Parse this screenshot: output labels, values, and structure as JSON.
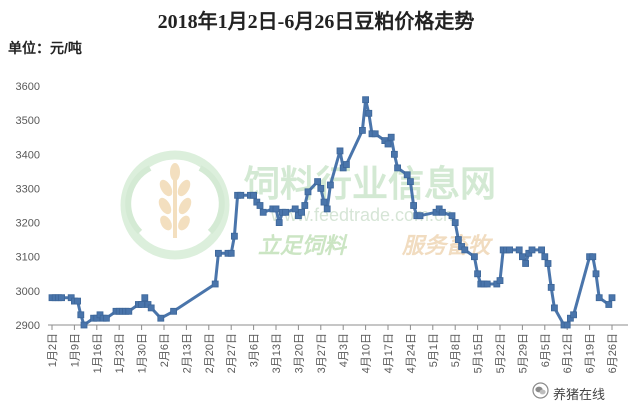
{
  "chart_data": {
    "type": "line",
    "title": "2018年1月2日-6月26日豆粕价格走势",
    "unit_label": "单位：元/吨",
    "ylim": [
      2900,
      3600
    ],
    "y_ticks": [
      3600,
      3500,
      3400,
      3300,
      3200,
      3100,
      3000,
      2900
    ],
    "xlim": [
      "2018-01-02",
      "2018-06-26"
    ],
    "x_tick_labels": [
      "1月2日",
      "1月9日",
      "1月16日",
      "1月23日",
      "1月30日",
      "2月6日",
      "2月13日",
      "2月20日",
      "2月27日",
      "3月6日",
      "3月13日",
      "3月20日",
      "3月27日",
      "4月3日",
      "4月10日",
      "4月17日",
      "4月24日",
      "5月1日",
      "5月8日",
      "5月15日",
      "5月22日",
      "5月29日",
      "6月5日",
      "6月12日",
      "6月19日",
      "6月26日"
    ],
    "grid": false,
    "series": [
      {
        "color": "#4A75AB",
        "marker_edge_color": "#3D6699",
        "marker": "square",
        "x": [
          "2018-01-02",
          "2018-01-03",
          "2018-01-04",
          "2018-01-05",
          "2018-01-08",
          "2018-01-09",
          "2018-01-10",
          "2018-01-11",
          "2018-01-12",
          "2018-01-15",
          "2018-01-16",
          "2018-01-17",
          "2018-01-18",
          "2018-01-19",
          "2018-01-22",
          "2018-01-23",
          "2018-01-24",
          "2018-01-25",
          "2018-01-26",
          "2018-01-29",
          "2018-01-30",
          "2018-01-31",
          "2018-02-01",
          "2018-02-02",
          "2018-02-05",
          "2018-02-09",
          "2018-02-22",
          "2018-02-23",
          "2018-02-26",
          "2018-02-27",
          "2018-02-28",
          "2018-03-01",
          "2018-03-02",
          "2018-03-05",
          "2018-03-06",
          "2018-03-07",
          "2018-03-08",
          "2018-03-09",
          "2018-03-12",
          "2018-03-13",
          "2018-03-14",
          "2018-03-15",
          "2018-03-16",
          "2018-03-19",
          "2018-03-20",
          "2018-03-21",
          "2018-03-22",
          "2018-03-23",
          "2018-03-26",
          "2018-03-27",
          "2018-03-28",
          "2018-03-29",
          "2018-03-30",
          "2018-04-02",
          "2018-04-03",
          "2018-04-04",
          "2018-04-09",
          "2018-04-10",
          "2018-04-11",
          "2018-04-12",
          "2018-04-13",
          "2018-04-16",
          "2018-04-17",
          "2018-04-18",
          "2018-04-19",
          "2018-04-20",
          "2018-04-23",
          "2018-04-24",
          "2018-04-25",
          "2018-04-26",
          "2018-04-27",
          "2018-05-02",
          "2018-05-03",
          "2018-05-04",
          "2018-05-07",
          "2018-05-08",
          "2018-05-09",
          "2018-05-10",
          "2018-05-11",
          "2018-05-14",
          "2018-05-15",
          "2018-05-16",
          "2018-05-17",
          "2018-05-18",
          "2018-05-21",
          "2018-05-22",
          "2018-05-23",
          "2018-05-24",
          "2018-05-25",
          "2018-05-28",
          "2018-05-29",
          "2018-05-30",
          "2018-05-31",
          "2018-06-01",
          "2018-06-04",
          "2018-06-05",
          "2018-06-06",
          "2018-06-07",
          "2018-06-08",
          "2018-06-11",
          "2018-06-12",
          "2018-06-13",
          "2018-06-14",
          "2018-06-19",
          "2018-06-20",
          "2018-06-21",
          "2018-06-22",
          "2018-06-25",
          "2018-06-26"
        ],
        "y": [
          2980,
          2980,
          2980,
          2980,
          2980,
          2970,
          2970,
          2930,
          2900,
          2920,
          2920,
          2930,
          2920,
          2920,
          2940,
          2940,
          2940,
          2940,
          2940,
          2960,
          2960,
          2980,
          2960,
          2950,
          2920,
          2940,
          3020,
          3110,
          3110,
          3110,
          3160,
          3280,
          3280,
          3280,
          3280,
          3260,
          3250,
          3230,
          3240,
          3240,
          3200,
          3230,
          3230,
          3240,
          3220,
          3230,
          3250,
          3290,
          3320,
          3300,
          3260,
          3240,
          3310,
          3410,
          3360,
          3370,
          3470,
          3560,
          3520,
          3460,
          3460,
          3440,
          3430,
          3450,
          3400,
          3360,
          3340,
          3320,
          3250,
          3220,
          3220,
          3230,
          3240,
          3230,
          3220,
          3200,
          3150,
          3130,
          3120,
          3100,
          3050,
          3020,
          3020,
          3020,
          3020,
          3030,
          3120,
          3120,
          3120,
          3120,
          3100,
          3080,
          3110,
          3120,
          3120,
          3100,
          3080,
          3010,
          2950,
          2900,
          2900,
          2920,
          2930,
          3100,
          3100,
          3050,
          2980,
          2960,
          2980
        ]
      }
    ]
  },
  "watermark": {
    "site_name": "饲料行业信息网",
    "url": "www.feedtrade.com.cn",
    "slogan_left": "立足饲料",
    "slogan_right": "服务畜牧",
    "logo_icon": "feedtrade-logo-icon",
    "colors": {
      "green": "#cbe5c3",
      "orange": "#f1dcc0"
    }
  },
  "brand": {
    "icon": "wechat-icon",
    "name": "养猪在线"
  }
}
